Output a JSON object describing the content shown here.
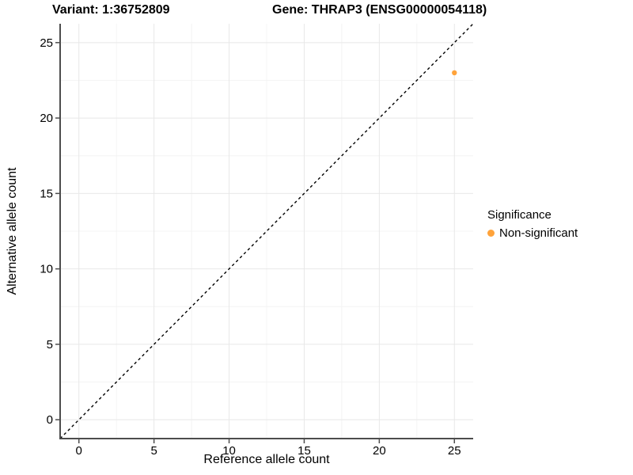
{
  "titles": {
    "variant": "Variant: 1:36752809",
    "gene": "Gene: THRAP3 (ENSG00000054118)"
  },
  "chart_data": {
    "type": "scatter",
    "title_left": "Variant: 1:36752809",
    "title_right": "Gene: THRAP3 (ENSG00000054118)",
    "xlabel": "Reference allele count",
    "ylabel": "Alternative allele count",
    "xlim": [
      -1.25,
      26.25
    ],
    "ylim": [
      -1.25,
      26.25
    ],
    "xticks": [
      0,
      5,
      10,
      15,
      20,
      25
    ],
    "yticks": [
      0,
      5,
      10,
      15,
      20,
      25
    ],
    "minor_ticks": [
      2.5,
      7.5,
      12.5,
      17.5,
      22.5
    ],
    "grid": true,
    "points": [
      {
        "x": 25,
        "y": 23,
        "series": "Non-significant"
      }
    ],
    "reference_line": {
      "type": "identity-diagonal",
      "slope": 1,
      "intercept": 0,
      "style": "dashed",
      "color": "#000000"
    },
    "legend": {
      "title": "Significance",
      "position": "right",
      "items": [
        {
          "label": "Non-significant",
          "color": "#FFA33A"
        }
      ]
    },
    "colors": {
      "point": "#FFA33A",
      "grid_major": "#e8e8e8",
      "grid_minor": "#f4f4f4",
      "axis_line": "#4d4d4d",
      "tick_mark": "#4d4d4d",
      "background": "#ffffff"
    }
  }
}
